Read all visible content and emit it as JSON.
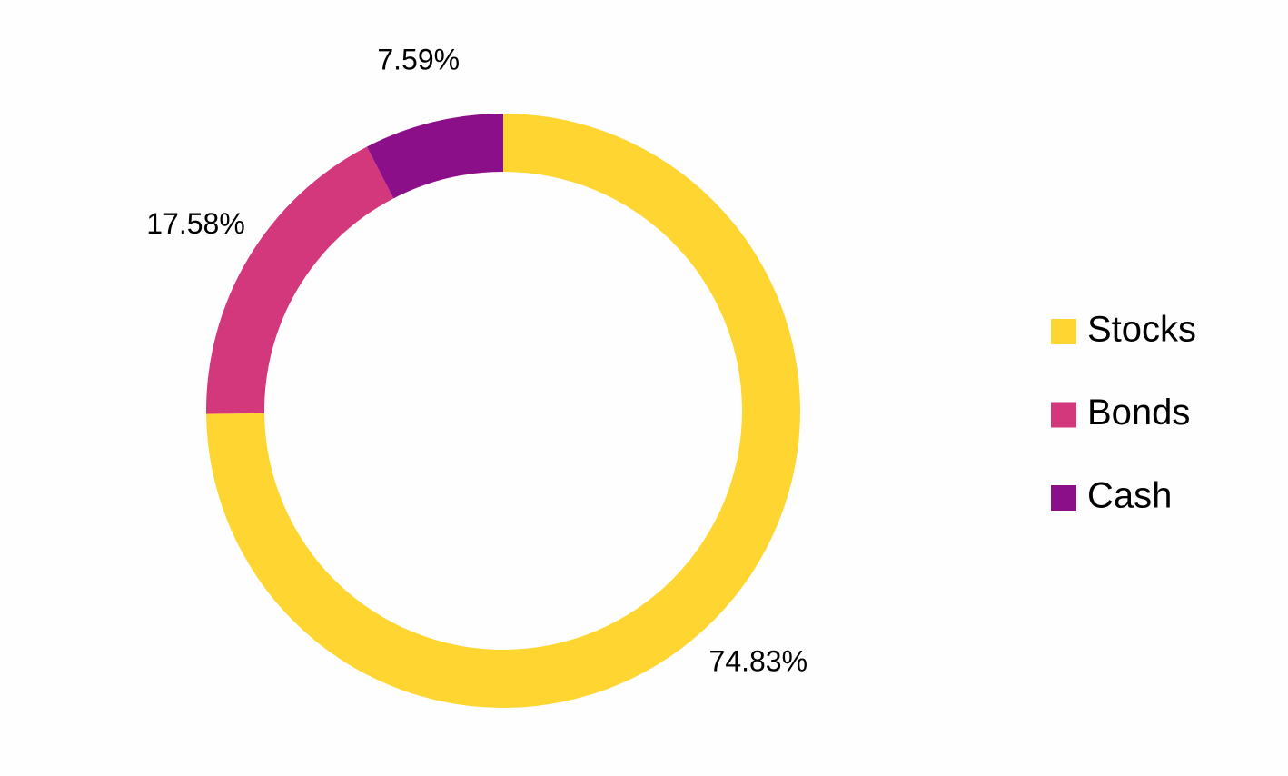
{
  "chart_data": {
    "type": "donut",
    "categories": [
      "Stocks",
      "Bonds",
      "Cash"
    ],
    "values": [
      74.83,
      17.58,
      7.59
    ],
    "value_labels": [
      "74.83%",
      "17.58%",
      "7.59%"
    ],
    "colors": [
      "#fed531",
      "#d2387b",
      "#8c0f8a"
    ],
    "legend": "right"
  }
}
